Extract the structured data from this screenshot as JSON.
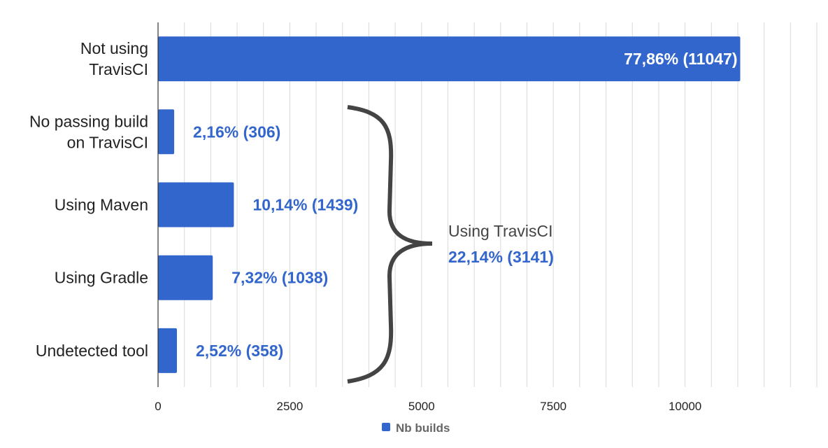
{
  "chart_data": {
    "type": "bar",
    "orientation": "horizontal",
    "categories": [
      [
        "Not using",
        "TravisCI"
      ],
      [
        "No passing build",
        "on TravisCI"
      ],
      [
        "Using Maven"
      ],
      [
        "Using Gradle"
      ],
      [
        "Undetected tool"
      ]
    ],
    "series": [
      {
        "name": "Nb builds",
        "color": "#3366cc",
        "values": [
          11047,
          306,
          1439,
          1038,
          358
        ],
        "data_labels": [
          "77,86% (11047)",
          "2,16% (306)",
          "10,14% (1439)",
          "7,32% (1038)",
          "2,52% (358)"
        ]
      }
    ],
    "xlim": [
      0,
      12500
    ],
    "x_ticks": [
      0,
      2500,
      5000,
      7500,
      10000
    ],
    "grid": true,
    "legend_position": "bottom",
    "annotation": {
      "type": "brace",
      "spans_categories": [
        1,
        4
      ],
      "title": "Using TravisCI",
      "value": "22,14% (3141)"
    }
  }
}
